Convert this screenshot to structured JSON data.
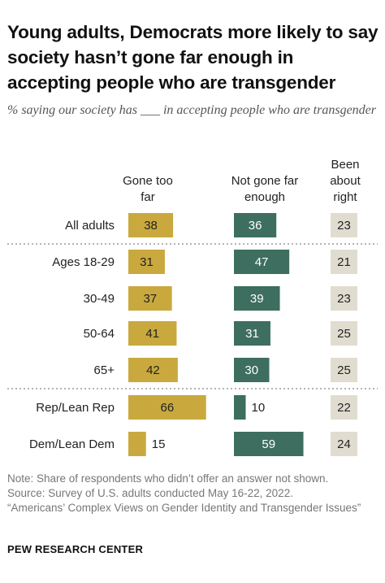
{
  "title": "Young adults, Democrats more likely to say society hasn’t gone far enough in accepting people who are transgender",
  "subtitle": "% saying our society has ___ in accepting people who are transgender",
  "columns": {
    "gone_too_far": "Gone too far",
    "not_far_enough": "Not gone far enough",
    "about_right": "Been about right"
  },
  "notes": {
    "note": "Note: Share of respondents who didn’t offer an answer not shown.",
    "source": "Source: Survey of U.S. adults conducted May 16-22, 2022.",
    "report": "“Americans’ Complex Views on Gender Identity and Transgender Issues”"
  },
  "brand": "PEW RESEARCH CENTER",
  "colors": {
    "gone_too_far": "#c9a93e",
    "not_far_enough": "#3d6e5f",
    "about_right": "#e0ddd0"
  },
  "chart_data": {
    "type": "bar",
    "categories": [
      "All adults",
      "Ages 18-29",
      "30-49",
      "50-64",
      "65+",
      "Rep/Lean Rep",
      "Dem/Lean Dem"
    ],
    "series": [
      {
        "name": "Gone too far",
        "values": [
          38,
          31,
          37,
          41,
          42,
          66,
          15
        ]
      },
      {
        "name": "Not gone far enough",
        "values": [
          36,
          47,
          39,
          31,
          30,
          10,
          59
        ]
      },
      {
        "name": "Been about right",
        "values": [
          23,
          21,
          23,
          25,
          25,
          22,
          24
        ]
      }
    ],
    "groups": [
      [
        "All adults"
      ],
      [
        "Ages 18-29",
        "30-49",
        "50-64",
        "65+"
      ],
      [
        "Rep/Lean Rep",
        "Dem/Lean Dem"
      ]
    ]
  }
}
